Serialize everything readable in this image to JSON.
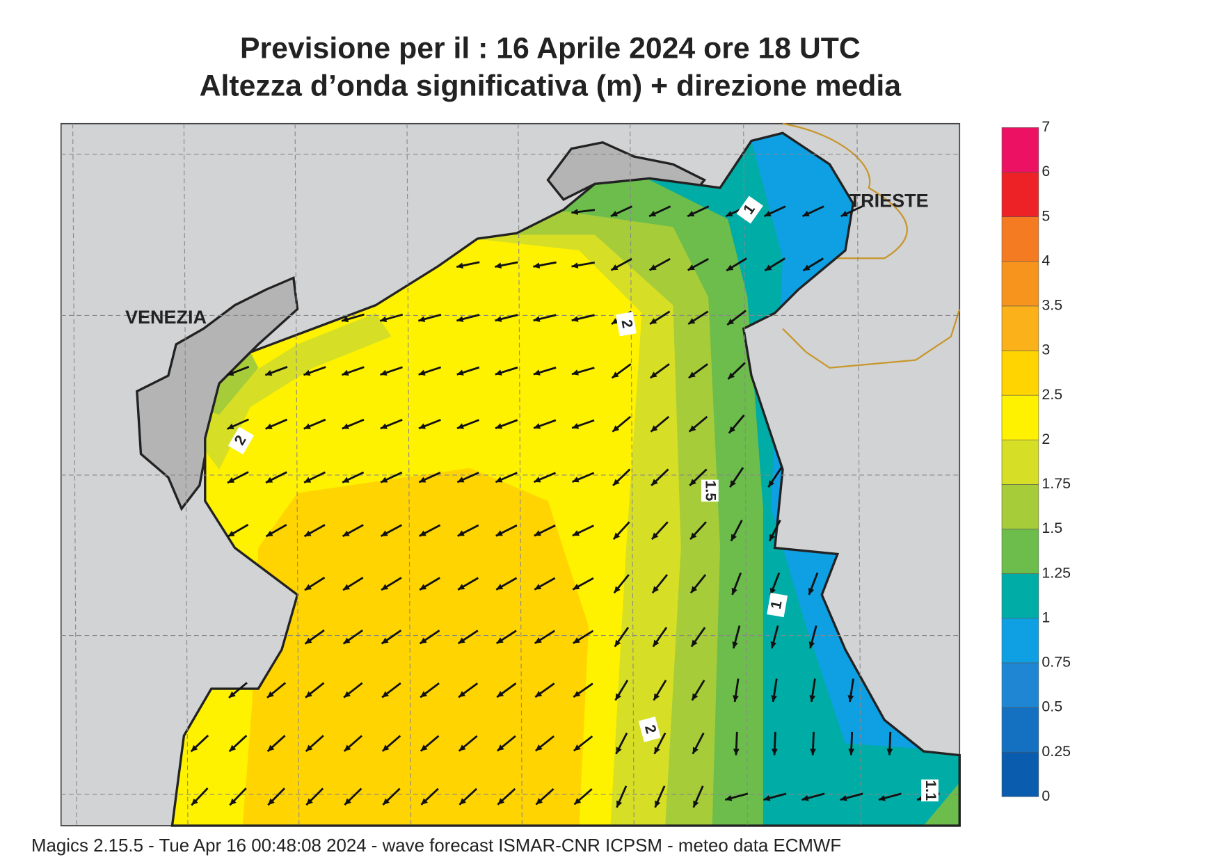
{
  "header": {
    "title": "Previsione per il  :  16   Aprile  2024   ore 18 UTC",
    "subtitle": "Altezza d’onda significativa (m) + direzione media"
  },
  "map": {
    "places": [
      "VENEZIA",
      "TRIESTE"
    ],
    "contour_labels": [
      "1",
      "2",
      "2",
      "1.5",
      "1",
      "2",
      "1.1"
    ]
  },
  "colorbar": {
    "labels": [
      "0",
      "0.25",
      "0.5",
      "0.75",
      "1",
      "1.25",
      "1.5",
      "1.75",
      "2",
      "2.5",
      "3",
      "3.5",
      "4",
      "5",
      "6",
      "7"
    ],
    "colors": [
      "#0a5cae",
      "#1470c0",
      "#1e86d2",
      "#0ea0e2",
      "#00aca6",
      "#6cbd4c",
      "#a6cc3a",
      "#d6df26",
      "#fff200",
      "#ffd400",
      "#fbb21a",
      "#f7941d",
      "#f47b21",
      "#ec2227",
      "#ec1162"
    ]
  },
  "footer": "Magics 2.15.5 - Tue Apr 16 00:48:08 2024 - wave forecast  ISMAR-CNR  ICPSM - meteo data   ECMWF"
}
